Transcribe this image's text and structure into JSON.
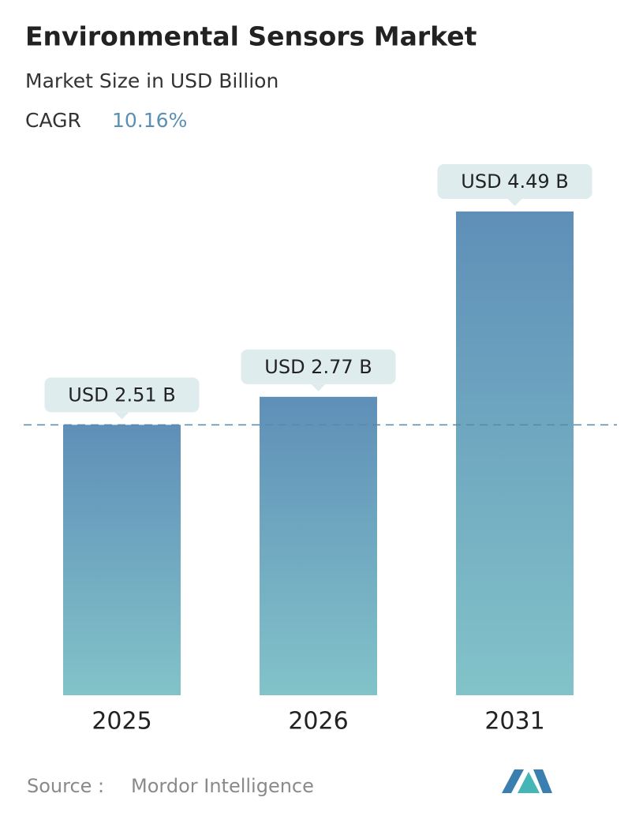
{
  "chart_data": {
    "type": "bar",
    "title": "Environmental Sensors Market",
    "subtitle": "Market Size in USD Billion",
    "cagr_label": "CAGR",
    "cagr_value": "10.16%",
    "categories": [
      "2025",
      "2026",
      "2031"
    ],
    "values": [
      2.51,
      2.77,
      4.49
    ],
    "value_labels": [
      "USD 2.51 B",
      "USD 2.77 B",
      "USD 4.49 B"
    ],
    "color_top": "#5f8fb8",
    "color_bottom": "#82c3c9",
    "source_label": "Source :",
    "source": "Mordor Intelligence"
  }
}
